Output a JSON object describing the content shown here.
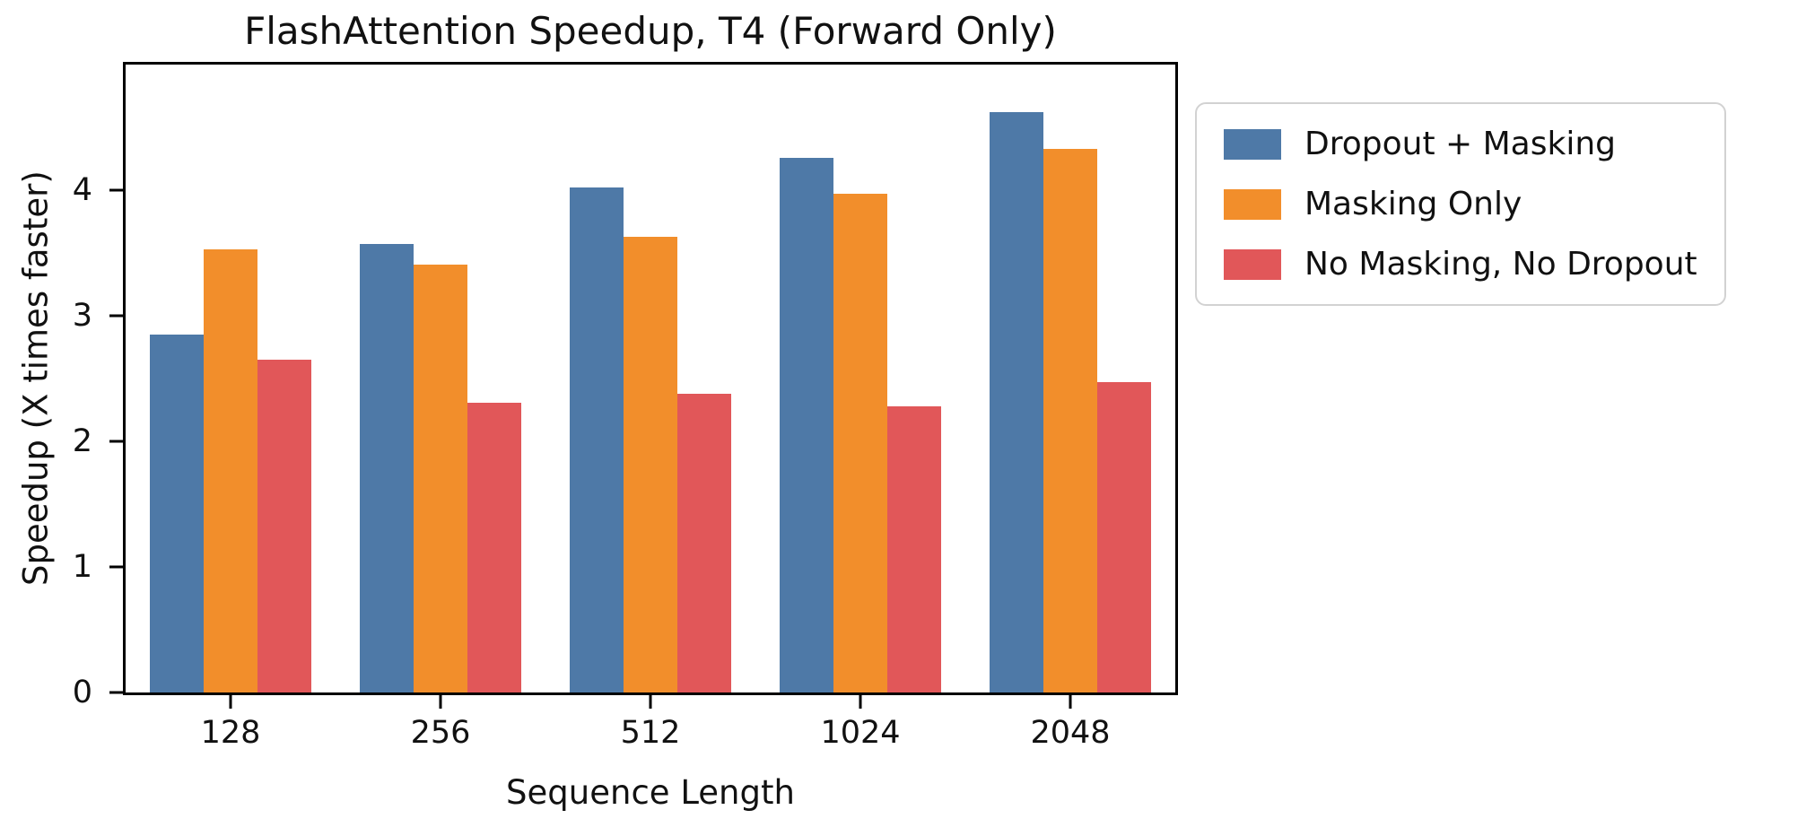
{
  "chart_data": {
    "type": "bar",
    "title": "FlashAttention Speedup, T4 (Forward Only)",
    "xlabel": "Sequence Length",
    "ylabel": "Speedup (X times faster)",
    "categories": [
      "128",
      "256",
      "512",
      "1024",
      "2048"
    ],
    "series": [
      {
        "name": "Dropout + Masking",
        "color": "#4E79A7",
        "values": [
          2.85,
          3.57,
          4.02,
          4.26,
          4.62
        ]
      },
      {
        "name": "Masking Only",
        "color": "#F28E2B",
        "values": [
          3.53,
          3.41,
          3.63,
          3.97,
          4.33
        ]
      },
      {
        "name": "No Masking, No Dropout",
        "color": "#E15759",
        "values": [
          2.65,
          2.31,
          2.38,
          2.28,
          2.47
        ]
      }
    ],
    "ylim": [
      0,
      5
    ],
    "yticks": [
      0,
      1,
      2,
      3,
      4
    ],
    "grid": false,
    "legend_position": "outside-right",
    "colors": {
      "spine": "#000000",
      "text": "#111111",
      "legend_border": "#d2d2d2",
      "background": "#ffffff"
    }
  }
}
